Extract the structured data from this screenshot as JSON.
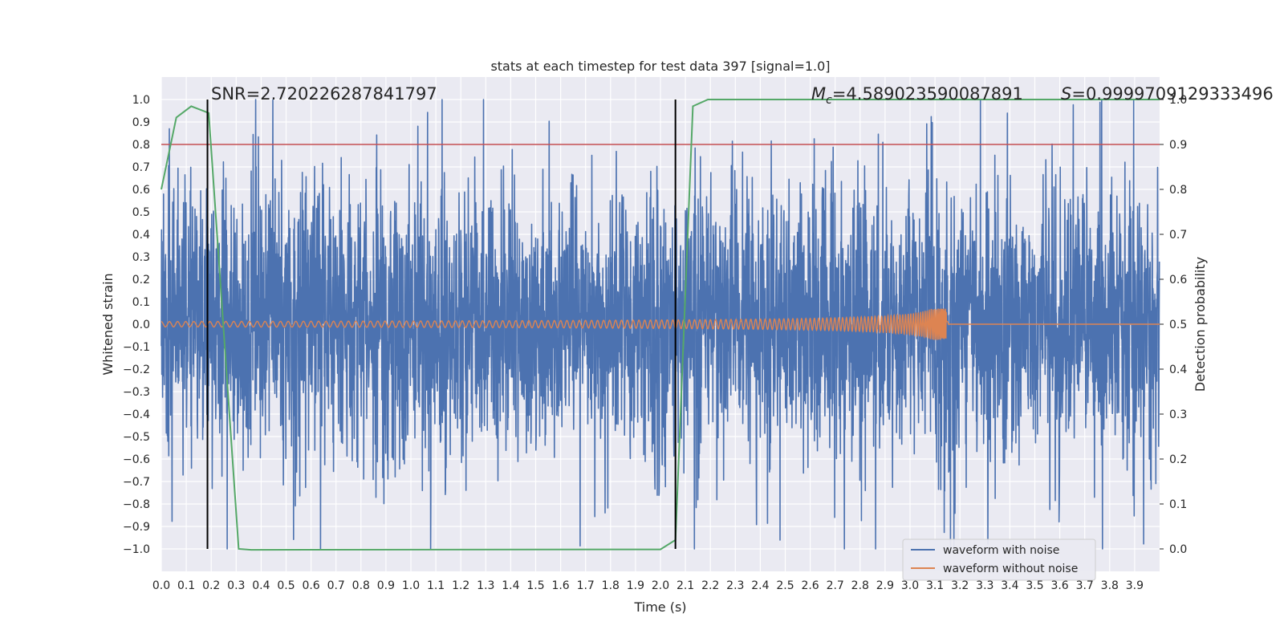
{
  "chart_data": {
    "type": "line",
    "title": "stats at each timestep for test data 397 [signal=1.0]",
    "xlabel": "Time (s)",
    "ylabel": "Whitened strain",
    "ylabel_right": "Detection probability",
    "xlim": [
      0.0,
      4.0
    ],
    "ylim": [
      -1.1,
      1.1
    ],
    "ylim_right": [
      -0.05,
      1.05
    ],
    "x_ticks": [
      0.0,
      0.1,
      0.2,
      0.3,
      0.4,
      0.5,
      0.6,
      0.7,
      0.8,
      0.9,
      1.0,
      1.1,
      1.2,
      1.3,
      1.4,
      1.5,
      1.6,
      1.7,
      1.8,
      1.9,
      2.0,
      2.1,
      2.2,
      2.3,
      2.4,
      2.5,
      2.6,
      2.7,
      2.8,
      2.9,
      3.0,
      3.1,
      3.2,
      3.3,
      3.4,
      3.5,
      3.6,
      3.7,
      3.8,
      3.9
    ],
    "y_ticks": [
      -1.0,
      -0.9,
      -0.8,
      -0.7,
      -0.6,
      -0.5,
      -0.4,
      -0.3,
      -0.2,
      -0.1,
      0.0,
      0.1,
      0.2,
      0.3,
      0.4,
      0.5,
      0.6,
      0.7,
      0.8,
      0.9,
      1.0
    ],
    "y_ticks_right": [
      0.0,
      0.1,
      0.2,
      0.3,
      0.4,
      0.5,
      0.6,
      0.7,
      0.8,
      0.9,
      1.0
    ],
    "grid": true,
    "legend_position": "lower-right",
    "annotations": {
      "snr": "SNR=2.720226287841797",
      "mc": "=4.589023590087891",
      "mc_symbol": "M",
      "mc_subscript": "c",
      "s": "=0.9999709129333496",
      "s_symbol": "S"
    },
    "series": [
      {
        "name": "waveform with noise",
        "color": "#4c72b0",
        "style": "dense noise, amplitude roughly within [-1.0, 1.0]"
      },
      {
        "name": "waveform without noise",
        "color": "#dd8452",
        "style": "chirp oscillation ending near 3.15 s, peak amplitude about 0.07"
      },
      {
        "name": "",
        "color": "#55a868",
        "axis": "right",
        "x": [
          0.0,
          0.06,
          0.12,
          0.19,
          0.31,
          0.36,
          2.0,
          2.06,
          2.13,
          2.19,
          4.0
        ],
        "y": [
          0.8,
          0.96,
          0.985,
          0.97,
          0.0,
          -0.002,
          -0.001,
          0.02,
          0.985,
          1.0,
          1.0
        ]
      }
    ],
    "threshold": {
      "value": 0.9,
      "axis": "right",
      "color": "#c44e52"
    },
    "vlines": [
      0.185,
      2.06
    ],
    "vline_ylim": [
      -1.0,
      1.0
    ],
    "vline_color": "#000000",
    "colors": {
      "background": "#eaeaf2",
      "grid": "#ffffff",
      "text": "#262626"
    }
  }
}
